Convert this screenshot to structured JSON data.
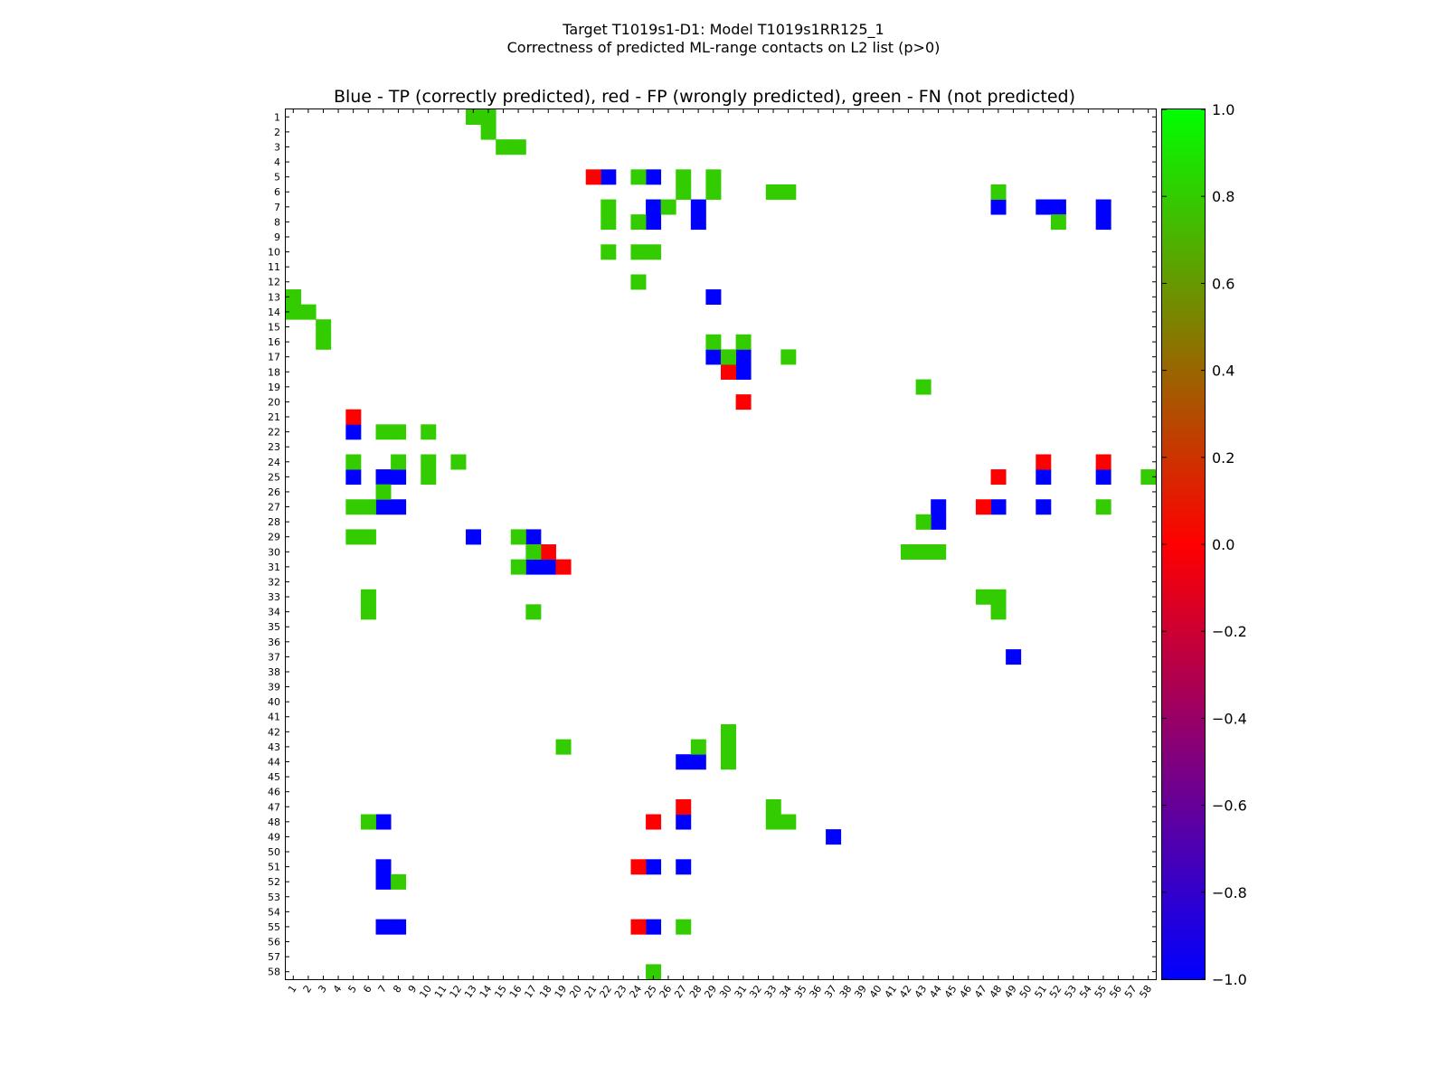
{
  "chart_data": {
    "type": "heatmap",
    "suptitle_line1": "Target T1019s1-D1: Model T1019s1RR125_1",
    "suptitle_line2": "Correctness of predicted ML-range contacts on L2 list (p>0)",
    "title": "Blue - TP (correctly predicted), red - FP (wrongly predicted), green - FN (not predicted)",
    "n": 58,
    "xlabel": "",
    "ylabel": "",
    "colorbar": {
      "vmin": -1.0,
      "vmax": 1.0,
      "ticks": [
        1.0,
        0.8,
        0.6,
        0.4,
        0.2,
        0.0,
        -0.2,
        -0.4,
        -0.6,
        -0.8,
        -1.0
      ],
      "tick_labels": [
        "1.0",
        "0.8",
        "0.6",
        "0.4",
        "0.2",
        "0.0",
        "−0.2",
        "−0.4",
        "−0.6",
        "−0.8",
        "−1.0"
      ],
      "colormap": [
        "#0000ff",
        "#ff0000",
        "#00ff00"
      ]
    },
    "category_colors": {
      "TP": "#0000ff",
      "FP": "#ff0000",
      "FN": "#33cc00"
    },
    "legend": {
      "TP": "Blue - correctly predicted",
      "FP": "red - wrongly predicted",
      "FN": "green - not predicted"
    },
    "cells": {
      "TP": [
        [
          5,
          25
        ],
        [
          5,
          22
        ],
        [
          7,
          25
        ],
        [
          7,
          28
        ],
        [
          7,
          48
        ],
        [
          7,
          51
        ],
        [
          7,
          52
        ],
        [
          7,
          55
        ],
        [
          8,
          25
        ],
        [
          8,
          28
        ],
        [
          8,
          55
        ],
        [
          13,
          29
        ],
        [
          17,
          29
        ],
        [
          17,
          31
        ],
        [
          18,
          31
        ],
        [
          22,
          5
        ],
        [
          25,
          5
        ],
        [
          25,
          7
        ],
        [
          25,
          8
        ],
        [
          25,
          51
        ],
        [
          25,
          55
        ],
        [
          27,
          7
        ],
        [
          27,
          8
        ],
        [
          27,
          44
        ],
        [
          27,
          48
        ],
        [
          27,
          51
        ],
        [
          28,
          44
        ],
        [
          29,
          13
        ],
        [
          29,
          17
        ],
        [
          31,
          17
        ],
        [
          31,
          18
        ],
        [
          37,
          49
        ],
        [
          44,
          27
        ],
        [
          44,
          28
        ],
        [
          48,
          7
        ],
        [
          48,
          27
        ],
        [
          49,
          37
        ],
        [
          51,
          7
        ],
        [
          51,
          25
        ],
        [
          51,
          27
        ],
        [
          52,
          7
        ],
        [
          55,
          7
        ],
        [
          55,
          8
        ],
        [
          55,
          25
        ]
      ],
      "FP": [
        [
          5,
          21
        ],
        [
          18,
          30
        ],
        [
          20,
          31
        ],
        [
          21,
          5
        ],
        [
          24,
          51
        ],
        [
          24,
          55
        ],
        [
          25,
          48
        ],
        [
          27,
          47
        ],
        [
          30,
          18
        ],
        [
          31,
          19
        ],
        [
          47,
          27
        ],
        [
          48,
          25
        ],
        [
          51,
          24
        ],
        [
          55,
          24
        ]
      ],
      "FN": [
        [
          1,
          13
        ],
        [
          1,
          14
        ],
        [
          2,
          14
        ],
        [
          3,
          15
        ],
        [
          3,
          16
        ],
        [
          5,
          24
        ],
        [
          5,
          27
        ],
        [
          5,
          29
        ],
        [
          6,
          27
        ],
        [
          6,
          29
        ],
        [
          6,
          33
        ],
        [
          6,
          34
        ],
        [
          6,
          48
        ],
        [
          7,
          22
        ],
        [
          7,
          26
        ],
        [
          8,
          22
        ],
        [
          8,
          24
        ],
        [
          8,
          52
        ],
        [
          10,
          22
        ],
        [
          10,
          24
        ],
        [
          10,
          25
        ],
        [
          12,
          24
        ],
        [
          13,
          1
        ],
        [
          14,
          1
        ],
        [
          14,
          2
        ],
        [
          15,
          3
        ],
        [
          16,
          3
        ],
        [
          16,
          29
        ],
        [
          16,
          31
        ],
        [
          17,
          30
        ],
        [
          17,
          34
        ],
        [
          19,
          43
        ],
        [
          22,
          7
        ],
        [
          22,
          8
        ],
        [
          22,
          10
        ],
        [
          24,
          5
        ],
        [
          24,
          8
        ],
        [
          24,
          10
        ],
        [
          24,
          12
        ],
        [
          25,
          10
        ],
        [
          25,
          58
        ],
        [
          26,
          7
        ],
        [
          27,
          5
        ],
        [
          27,
          6
        ],
        [
          27,
          55
        ],
        [
          28,
          43
        ],
        [
          29,
          5
        ],
        [
          29,
          6
        ],
        [
          29,
          16
        ],
        [
          30,
          17
        ],
        [
          30,
          42
        ],
        [
          30,
          43
        ],
        [
          30,
          44
        ],
        [
          31,
          16
        ],
        [
          33,
          6
        ],
        [
          33,
          47
        ],
        [
          33,
          48
        ],
        [
          34,
          6
        ],
        [
          34,
          17
        ],
        [
          34,
          48
        ],
        [
          42,
          30
        ],
        [
          43,
          19
        ],
        [
          43,
          28
        ],
        [
          43,
          30
        ],
        [
          44,
          30
        ],
        [
          47,
          33
        ],
        [
          48,
          6
        ],
        [
          48,
          33
        ],
        [
          48,
          34
        ],
        [
          52,
          8
        ],
        [
          55,
          27
        ],
        [
          58,
          25
        ]
      ]
    }
  }
}
